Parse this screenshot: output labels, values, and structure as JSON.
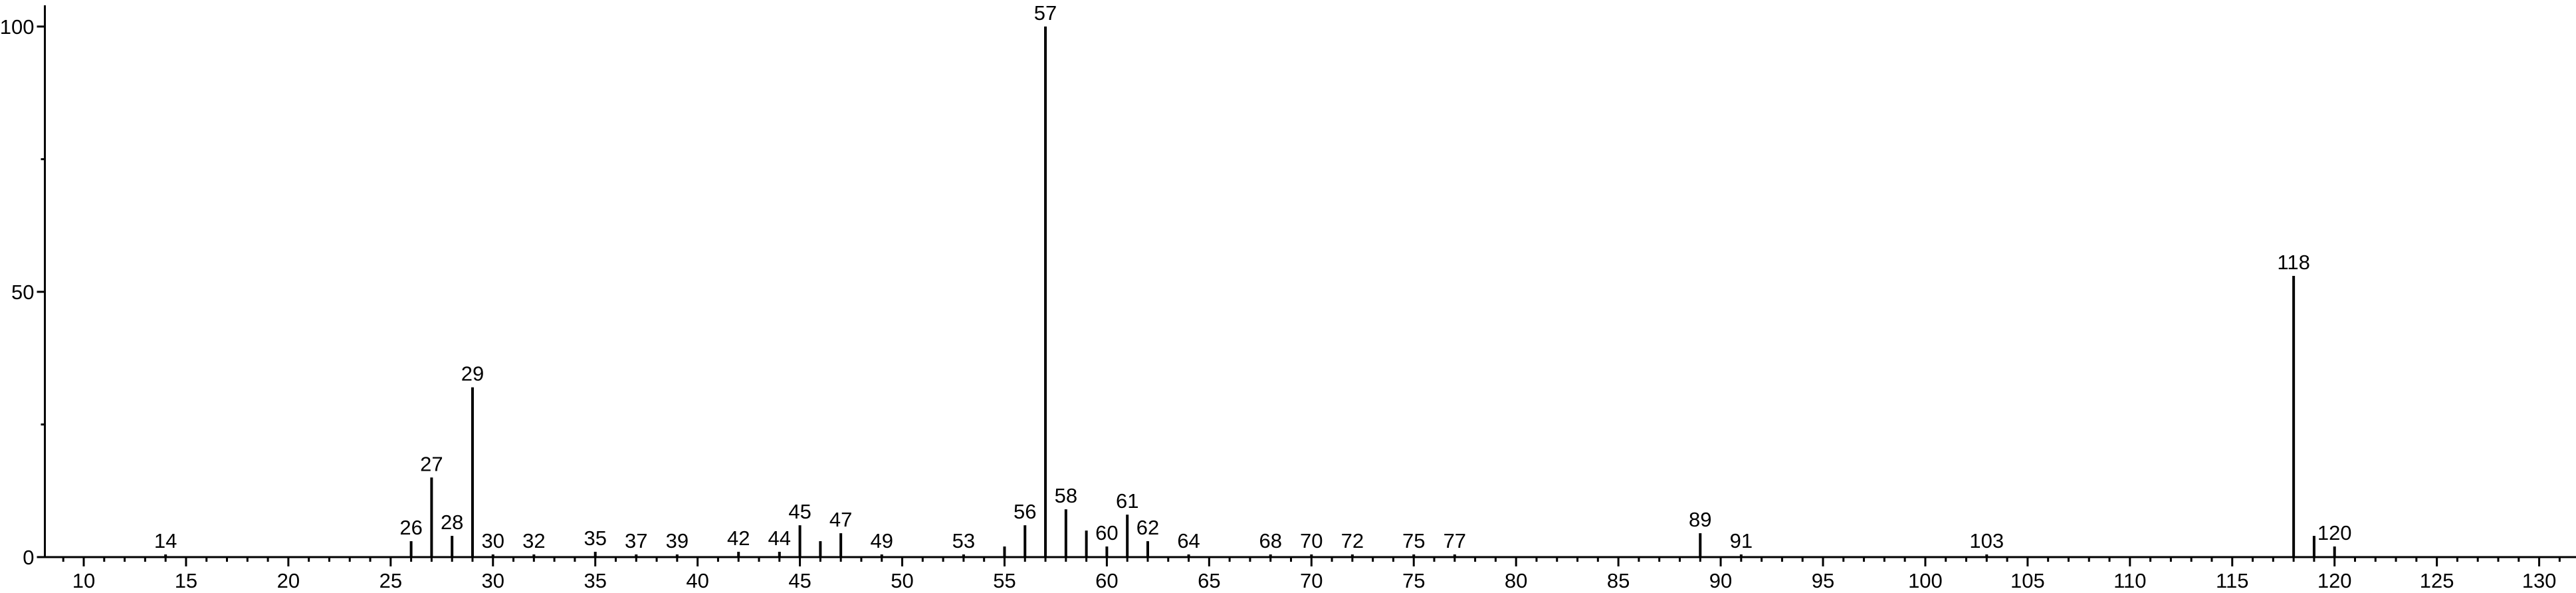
{
  "chart_data": {
    "type": "spectrum",
    "x": [
      14,
      26,
      27,
      28,
      29,
      30,
      32,
      35,
      37,
      39,
      42,
      44,
      45,
      46,
      47,
      49,
      53,
      55,
      56,
      57,
      58,
      59,
      60,
      61,
      62,
      64,
      68,
      70,
      72,
      75,
      77,
      89,
      91,
      103,
      118,
      119,
      120
    ],
    "values": [
      0.5,
      3,
      15,
      4,
      32,
      0.5,
      0.5,
      1,
      0.5,
      0.5,
      1,
      1,
      6,
      3,
      4.5,
      0.5,
      0.5,
      2,
      6,
      100,
      9,
      5,
      2,
      8,
      3,
      0.5,
      0.5,
      0.5,
      0.5,
      0.5,
      0.5,
      4.5,
      0.5,
      0.5,
      53,
      4,
      2
    ],
    "show_label": [
      true,
      true,
      true,
      true,
      true,
      true,
      true,
      true,
      true,
      true,
      true,
      true,
      true,
      false,
      true,
      true,
      true,
      false,
      true,
      true,
      true,
      false,
      true,
      true,
      true,
      true,
      true,
      true,
      true,
      true,
      true,
      true,
      true,
      true,
      true,
      false,
      true
    ],
    "color": "#000000",
    "xlim": [
      8.1,
      131.8
    ],
    "xticks": [
      10,
      15,
      20,
      25,
      30,
      35,
      40,
      45,
      50,
      55,
      60,
      65,
      70,
      75,
      80,
      85,
      90,
      95,
      100,
      105,
      110,
      115,
      120,
      125,
      130
    ],
    "xminorticks": [
      9,
      11,
      12,
      13,
      14,
      16,
      17,
      18,
      19,
      21,
      22,
      23,
      24,
      26,
      27,
      28,
      29,
      31,
      32,
      33,
      34,
      36,
      37,
      38,
      39,
      41,
      42,
      43,
      44,
      46,
      47,
      48,
      49,
      51,
      52,
      53,
      54,
      56,
      57,
      58,
      59,
      61,
      62,
      63,
      64,
      66,
      67,
      68,
      69,
      71,
      72,
      73,
      74,
      76,
      77,
      78,
      79,
      81,
      82,
      83,
      84,
      86,
      87,
      88,
      89,
      91,
      92,
      93,
      94,
      96,
      97,
      98,
      99,
      101,
      102,
      103,
      104,
      106,
      107,
      108,
      109,
      111,
      112,
      113,
      114,
      116,
      117,
      118,
      119,
      121,
      122,
      123,
      124,
      126,
      127,
      128,
      129,
      131
    ],
    "ylim": [
      0,
      104
    ],
    "yticks": [
      0,
      50,
      100
    ],
    "yminorticks": [
      25,
      75
    ]
  }
}
